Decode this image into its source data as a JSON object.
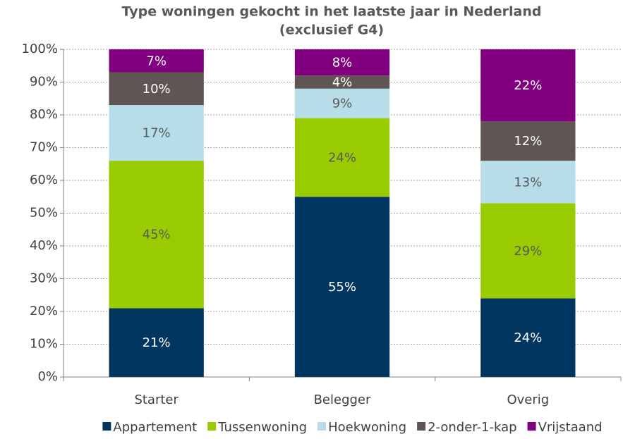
{
  "chart_data": {
    "type": "stacked_bar",
    "title": [
      "Type woningen gekocht in het laatste jaar in Nederland",
      "(exclusief G4)"
    ],
    "categories": [
      "Starter",
      "Belegger",
      "Overig"
    ],
    "series": [
      {
        "name": "Appartement",
        "color": "#003660",
        "label_color": "#ffffff",
        "values": [
          21,
          55,
          24
        ],
        "value_labels": [
          "21%",
          "55%",
          "24%"
        ]
      },
      {
        "name": "Tussenwoning",
        "color": "#99cc00",
        "label_color": "#595959",
        "values": [
          45,
          24,
          29
        ],
        "value_labels": [
          "45%",
          "24%",
          "29%"
        ]
      },
      {
        "name": "Hoekwoning",
        "color": "#b7dee8",
        "label_color": "#595959",
        "values": [
          17,
          9,
          13
        ],
        "value_labels": [
          "17%",
          "9%",
          "13%"
        ]
      },
      {
        "name": "2-onder-1-kap",
        "color": "#5f5654",
        "label_color": "#ffffff",
        "values": [
          10,
          4,
          12
        ],
        "value_labels": [
          "10%",
          "4%",
          "12%"
        ]
      },
      {
        "name": "Vrijstaand",
        "color": "#800080",
        "label_color": "#ffffff",
        "values": [
          7,
          8,
          22
        ],
        "value_labels": [
          "7%",
          "8%",
          "22%"
        ]
      }
    ],
    "ylim": [
      0,
      100
    ],
    "yticks": [
      {
        "value": 0,
        "label": "0%"
      },
      {
        "value": 10,
        "label": "10%"
      },
      {
        "value": 20,
        "label": "20%"
      },
      {
        "value": 30,
        "label": "30%"
      },
      {
        "value": 40,
        "label": "40%"
      },
      {
        "value": 50,
        "label": "50%"
      },
      {
        "value": 60,
        "label": "60%"
      },
      {
        "value": 70,
        "label": "70%"
      },
      {
        "value": 80,
        "label": "80%"
      },
      {
        "value": 90,
        "label": "90%"
      },
      {
        "value": 100,
        "label": "100%"
      }
    ],
    "grid": true,
    "legend": "bottom"
  }
}
